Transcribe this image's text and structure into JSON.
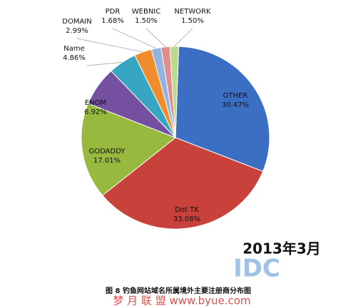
{
  "chart_data": {
    "type": "pie",
    "title": "图 8  钓鱼网站域名所属境外主要注册商分布图",
    "subtitle": "2013年3月",
    "watermarks": [
      "IDC",
      "梦 月 联 盟  www.byue.com"
    ],
    "categories": [
      "OTHER",
      "Dot TK",
      "GODADDY",
      "ENOM",
      "Name",
      "DOMAIN",
      "PDR",
      "WEBNIC",
      "NETWORK"
    ],
    "values": [
      30.47,
      33.08,
      17.01,
      6.92,
      4.86,
      2.99,
      1.68,
      1.5,
      1.5
    ],
    "value_labels": [
      "30.47%",
      "33.08%",
      "17.01%",
      "6.92%",
      "4.86%",
      "2.99%",
      "1.68%",
      "1.50%",
      "1.50%"
    ],
    "colors": [
      "#3b6fc4",
      "#c8413b",
      "#97ba3e",
      "#7550a0",
      "#36a6c3",
      "#f08c2c",
      "#93b3e0",
      "#e08e8c",
      "#bcd98c"
    ]
  }
}
